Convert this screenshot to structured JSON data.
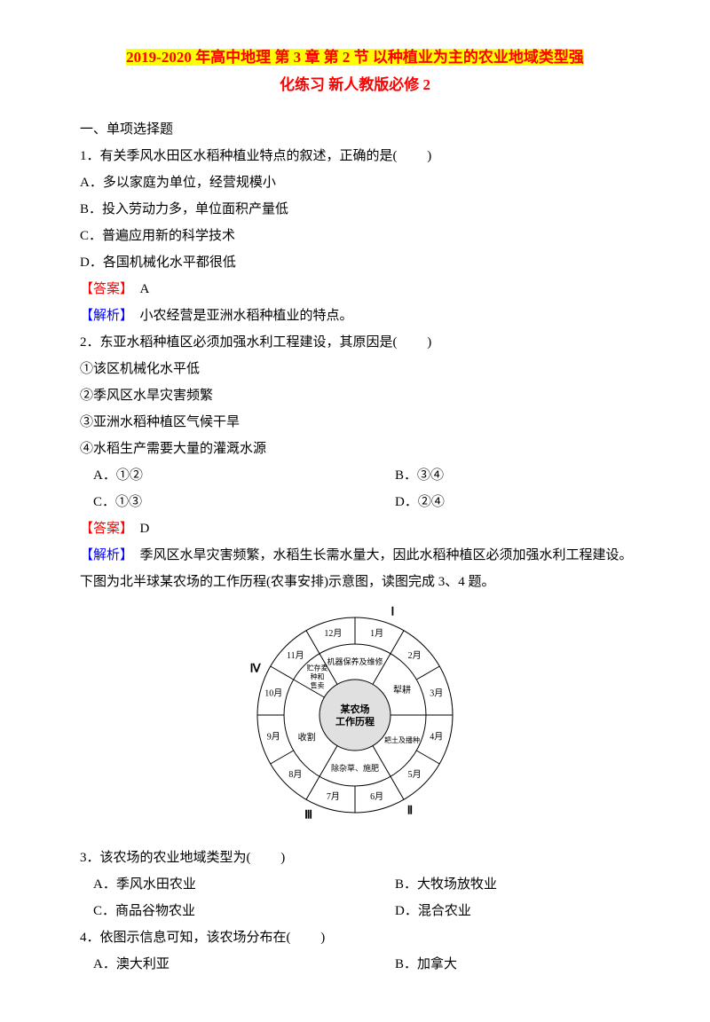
{
  "title": {
    "highlighted": "2019-2020 年高中地理 第 3 章 第 2 节 以种植业为主的农业地域类型强",
    "rest": "化练习 新人教版必修 2"
  },
  "sectionHeading": "一、单项选择题",
  "q1": {
    "stem": "1．有关季风水田区水稻种植业特点的叙述，正确的是(　 　)",
    "a": "A．多以家庭为单位，经营规模小",
    "b": "B．投入劳动力多，单位面积产量低",
    "c": "C．普遍应用新的科学技术",
    "d": "D．各国机械化水平都很低",
    "answerLabel": "【答案】",
    "answerValue": "　A",
    "analysisLabel": "【解析】",
    "analysisText": "　小农经营是亚洲水稻种植业的特点。"
  },
  "q2": {
    "stem": "2．东亚水稻种植区必须加强水利工程建设，其原因是(　 　)",
    "s1": "①该区机械化水平低",
    "s2": "②季风区水旱灾害频繁",
    "s3": "③亚洲水稻种植区气候干旱",
    "s4": "④水稻生产需要大量的灌溉水源",
    "a": "A．①②",
    "b": "B．③④",
    "c": "C．①③",
    "d": "D．②④",
    "answerLabel": "【答案】",
    "answerValue": "　D",
    "analysisLabel": "【解析】",
    "analysisText": "　季风区水旱灾害频繁，水稻生长需水量大，因此水稻种植区必须加强水利工程建设。"
  },
  "lead34": "下图为北半球某农场的工作历程(农事安排)示意图，读图完成 3、4 题。",
  "diagram": {
    "months": [
      "1月",
      "2月",
      "3月",
      "4月",
      "5月",
      "6月",
      "7月",
      "8月",
      "9月",
      "10月",
      "11月",
      "12月"
    ],
    "quadrantLabels": [
      "Ⅰ",
      "Ⅱ",
      "Ⅲ",
      "Ⅳ"
    ],
    "tasks": {
      "top": "机器保养及维修",
      "right1": "犁耕",
      "right2": "耙土及播种",
      "bottom": "除杂草、施肥",
      "bottomLeft": "收割",
      "left": "贮存麦种和售卖"
    },
    "centerLine1": "某农场",
    "centerLine2": "工作历程",
    "colors": {
      "stroke": "#000000",
      "fill": "#ffffff",
      "centerFill": "#e0e0e0"
    }
  },
  "q3": {
    "stem": "3．该农场的农业地域类型为(　 　)",
    "a": "A．季风水田农业",
    "b": "B．大牧场放牧业",
    "c": "C．商品谷物农业",
    "d": "D．混合农业"
  },
  "q4": {
    "stem": "4．依图示信息可知，该农场分布在(　 　)",
    "a": "A．澳大利亚",
    "b": "B．加拿大"
  }
}
